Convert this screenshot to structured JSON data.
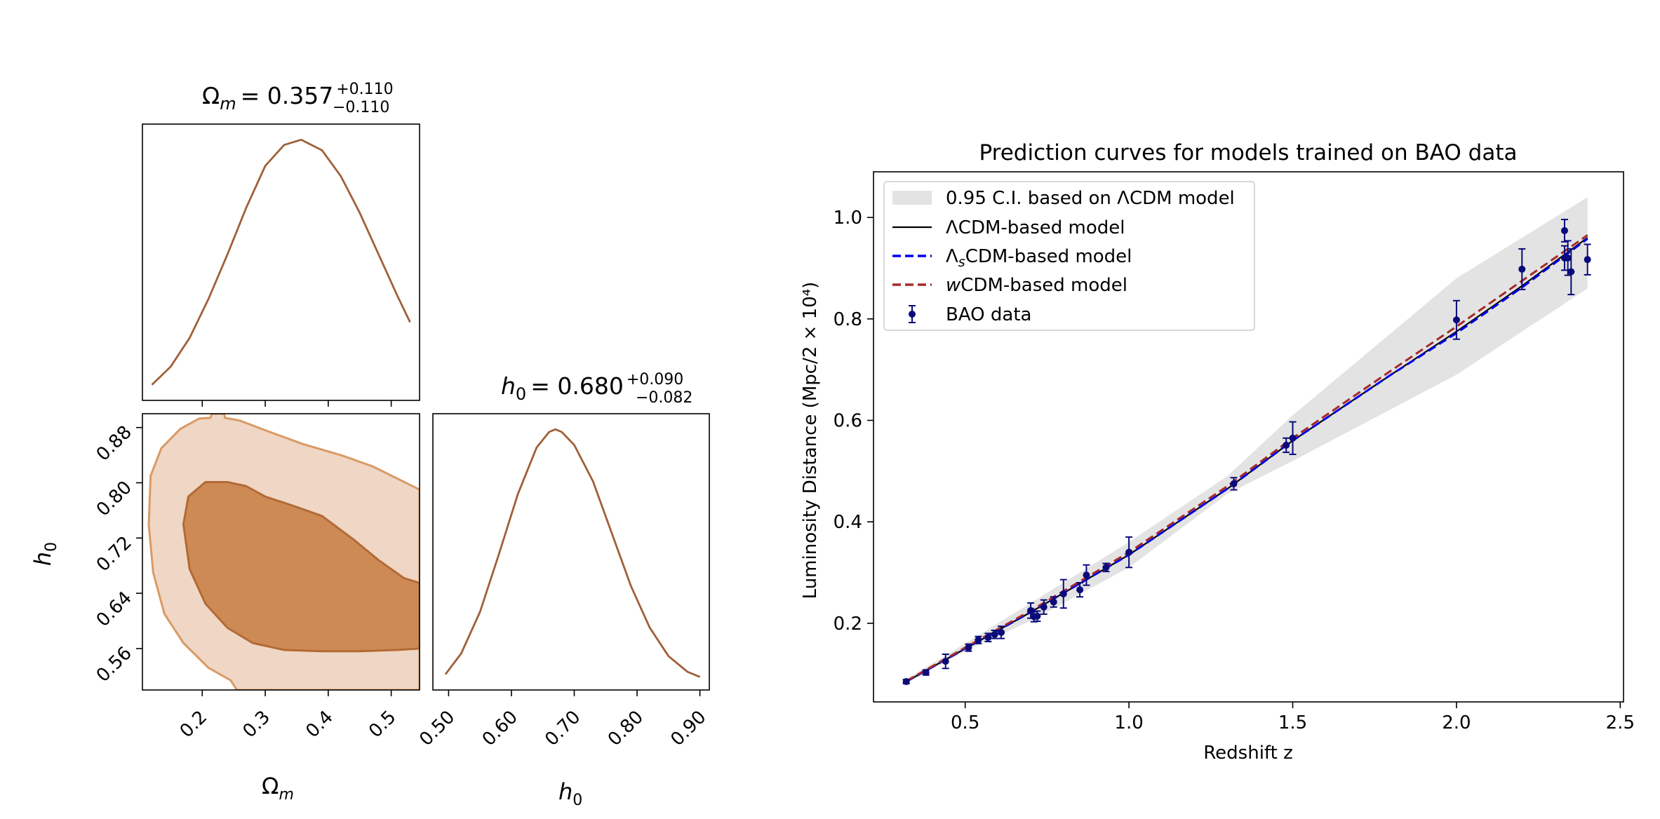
{
  "chart_data": [
    {
      "type": "line",
      "panel": "corner-marginal-omega_m",
      "title_symbol": "Ω",
      "title_sub": "m",
      "title_value": "= 0.357",
      "title_sup": "+0.110",
      "title_inf": "−0.110",
      "xlim": [
        0.105,
        0.545
      ],
      "curve": {
        "x": [
          0.12,
          0.15,
          0.18,
          0.21,
          0.24,
          0.27,
          0.3,
          0.33,
          0.357,
          0.39,
          0.42,
          0.45,
          0.48,
          0.51,
          0.53
        ],
        "y": [
          0.06,
          0.13,
          0.24,
          0.39,
          0.56,
          0.74,
          0.9,
          0.98,
          1.0,
          0.96,
          0.86,
          0.72,
          0.56,
          0.4,
          0.3
        ]
      },
      "color": "#A0603A"
    },
    {
      "type": "contour",
      "panel": "corner-joint",
      "xlabel_symbol": "Ω",
      "xlabel_sub": "m",
      "ylabel_symbol": "h",
      "ylabel_sub": "0",
      "xlim": [
        0.105,
        0.545
      ],
      "ylim": [
        0.5,
        0.9
      ],
      "xticks": [
        0.2,
        0.3,
        0.4,
        0.5
      ],
      "xtick_labels": [
        "0.2",
        "0.3",
        "0.4",
        "0.5"
      ],
      "yticks": [
        0.56,
        0.64,
        0.72,
        0.8,
        0.88
      ],
      "ytick_labels": [
        "0.56",
        "0.64",
        "0.72",
        "0.80",
        "0.88"
      ],
      "outer_region": [
        [
          0.215,
          0.9
        ],
        [
          0.235,
          0.9
        ],
        [
          0.236,
          0.894
        ],
        [
          0.26,
          0.89
        ],
        [
          0.3,
          0.876
        ],
        [
          0.36,
          0.856
        ],
        [
          0.42,
          0.84
        ],
        [
          0.47,
          0.824
        ],
        [
          0.51,
          0.806
        ],
        [
          0.545,
          0.79
        ],
        [
          0.545,
          0.5
        ],
        [
          0.255,
          0.5
        ],
        [
          0.245,
          0.514
        ],
        [
          0.21,
          0.532
        ],
        [
          0.17,
          0.568
        ],
        [
          0.14,
          0.61
        ],
        [
          0.122,
          0.67
        ],
        [
          0.115,
          0.74
        ],
        [
          0.118,
          0.81
        ],
        [
          0.135,
          0.85
        ],
        [
          0.165,
          0.878
        ],
        [
          0.195,
          0.893
        ],
        [
          0.213,
          0.894
        ]
      ],
      "inner_region": [
        [
          0.17,
          0.74
        ],
        [
          0.178,
          0.78
        ],
        [
          0.205,
          0.801
        ],
        [
          0.24,
          0.801
        ],
        [
          0.27,
          0.795
        ],
        [
          0.3,
          0.78
        ],
        [
          0.34,
          0.768
        ],
        [
          0.39,
          0.752
        ],
        [
          0.44,
          0.718
        ],
        [
          0.48,
          0.688
        ],
        [
          0.52,
          0.662
        ],
        [
          0.545,
          0.655
        ],
        [
          0.545,
          0.56
        ],
        [
          0.51,
          0.558
        ],
        [
          0.45,
          0.556
        ],
        [
          0.39,
          0.556
        ],
        [
          0.33,
          0.558
        ],
        [
          0.28,
          0.568
        ],
        [
          0.24,
          0.59
        ],
        [
          0.205,
          0.625
        ],
        [
          0.18,
          0.675
        ]
      ],
      "outer_color": "#F0D6C4",
      "outer_edge": "#D99A65",
      "inner_color": "#CE8A55",
      "inner_edge": "#B26A35"
    },
    {
      "type": "line",
      "panel": "corner-marginal-h0",
      "title_symbol": "h",
      "title_sub": "0",
      "title_value": "= 0.680",
      "title_sup": "+0.090",
      "title_inf": "−0.082",
      "xlabel_symbol": "h",
      "xlabel_sub": "0",
      "xlim": [
        0.475,
        0.915
      ],
      "xticks": [
        0.5,
        0.6,
        0.7,
        0.8,
        0.9
      ],
      "xtick_labels": [
        "0.50",
        "0.60",
        "0.70",
        "0.80",
        "0.90"
      ],
      "curve": {
        "x": [
          0.495,
          0.52,
          0.55,
          0.58,
          0.61,
          0.64,
          0.66,
          0.67,
          0.68,
          0.7,
          0.73,
          0.76,
          0.79,
          0.82,
          0.85,
          0.88,
          0.9
        ],
        "y": [
          0.06,
          0.14,
          0.3,
          0.52,
          0.75,
          0.93,
          0.99,
          1.0,
          0.99,
          0.94,
          0.8,
          0.6,
          0.4,
          0.24,
          0.13,
          0.07,
          0.05
        ]
      },
      "color": "#A0603A"
    },
    {
      "type": "line",
      "panel": "prediction-curves",
      "title": "Prediction curves for models trained on BAO data",
      "xlabel": "Redshift z",
      "ylabel": "Luminosity Distance (Mpc/2 × 10⁴)",
      "xlim": [
        0.22,
        2.51
      ],
      "ylim": [
        0.045,
        1.09
      ],
      "xticks": [
        0.5,
        1.0,
        1.5,
        2.0,
        2.5
      ],
      "xtick_labels": [
        "0.5",
        "1.0",
        "1.5",
        "2.0",
        "2.5"
      ],
      "yticks": [
        0.2,
        0.4,
        0.6,
        0.8,
        1.0
      ],
      "ytick_labels": [
        "0.2",
        "0.4",
        "0.6",
        "0.8",
        "1.0"
      ],
      "legend_position": "upper-left",
      "legend": [
        {
          "label": "0.95 C.I. based on ΛCDM model",
          "kind": "band",
          "color": "#E3E3E3"
        },
        {
          "label": "ΛCDM-based model",
          "kind": "solid",
          "color": "#000000"
        },
        {
          "label_main": "Λ",
          "label_sub": "s",
          "label_rest": "CDM-based model",
          "kind": "dashed",
          "color": "#0000EE"
        },
        {
          "label_main": "w",
          "label_rest": "CDM-based model",
          "kind": "dashed",
          "color": "#A52A2A"
        },
        {
          "label": "BAO data",
          "kind": "errorbar",
          "color": "#0A0A7A"
        }
      ],
      "ci_band": {
        "x": [
          0.32,
          0.5,
          0.7,
          1.0,
          1.3,
          1.5,
          2.0,
          2.4
        ],
        "lower": [
          0.082,
          0.145,
          0.205,
          0.31,
          0.455,
          0.52,
          0.69,
          0.86
        ],
        "upper": [
          0.09,
          0.16,
          0.24,
          0.36,
          0.49,
          0.61,
          0.88,
          1.04
        ]
      },
      "series": [
        {
          "name": "ΛCDM-based model",
          "x": [
            0.32,
            0.5,
            0.7,
            1.0,
            1.3,
            1.5,
            1.8,
            2.0,
            2.2,
            2.4
          ],
          "y": [
            0.085,
            0.15,
            0.222,
            0.335,
            0.465,
            0.56,
            0.69,
            0.775,
            0.865,
            0.96
          ],
          "color": "#000000",
          "dash": "solid"
        },
        {
          "name": "ΛsCDM-based model",
          "x": [
            0.32,
            0.5,
            0.7,
            1.0,
            1.3,
            1.5,
            1.8,
            2.0,
            2.2,
            2.4
          ],
          "y": [
            0.085,
            0.15,
            0.222,
            0.335,
            0.465,
            0.56,
            0.69,
            0.772,
            0.862,
            0.958
          ],
          "color": "#0000EE",
          "dash": "dashed"
        },
        {
          "name": "wCDM-based model",
          "x": [
            0.32,
            0.5,
            0.7,
            1.0,
            1.3,
            1.5,
            1.8,
            2.0,
            2.2,
            2.4
          ],
          "y": [
            0.086,
            0.152,
            0.225,
            0.34,
            0.47,
            0.565,
            0.698,
            0.785,
            0.875,
            0.965
          ],
          "color": "#A52A2A",
          "dash": "dashed"
        }
      ],
      "points": {
        "name": "BAO data",
        "x": [
          0.32,
          0.38,
          0.44,
          0.51,
          0.54,
          0.57,
          0.59,
          0.61,
          0.7,
          0.71,
          0.72,
          0.74,
          0.77,
          0.8,
          0.85,
          0.87,
          0.93,
          1.0,
          1.32,
          1.48,
          1.5,
          2.0,
          2.2,
          2.33,
          2.33,
          2.34,
          2.35,
          2.4
        ],
        "y": [
          0.085,
          0.103,
          0.125,
          0.152,
          0.167,
          0.172,
          0.178,
          0.182,
          0.225,
          0.213,
          0.214,
          0.232,
          0.242,
          0.258,
          0.266,
          0.295,
          0.31,
          0.34,
          0.475,
          0.551,
          0.565,
          0.798,
          0.898,
          0.974,
          0.92,
          0.92,
          0.893,
          0.917
        ],
        "err": [
          0.004,
          0.005,
          0.014,
          0.007,
          0.007,
          0.008,
          0.008,
          0.012,
          0.015,
          0.01,
          0.01,
          0.014,
          0.01,
          0.028,
          0.014,
          0.02,
          0.008,
          0.03,
          0.012,
          0.014,
          0.032,
          0.038,
          0.04,
          0.022,
          0.024,
          0.034,
          0.045,
          0.03
        ],
        "color": "#0A0A7A"
      }
    }
  ]
}
